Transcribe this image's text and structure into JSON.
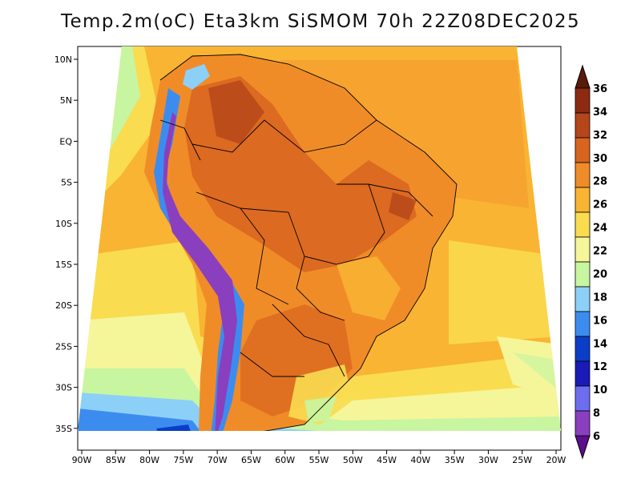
{
  "title": "Temp.2m(oC) Eta3km SiSMOM 70h 22Z08DEC2025",
  "map": {
    "lon_labels": [
      "90W",
      "85W",
      "80W",
      "75W",
      "70W",
      "65W",
      "60W",
      "55W",
      "50W",
      "45W",
      "40W",
      "35W",
      "30W",
      "25W",
      "20W"
    ],
    "lat_labels": [
      "10N",
      "5N",
      "EQ",
      "5S",
      "10S",
      "15S",
      "20S",
      "25S",
      "30S",
      "35S"
    ]
  },
  "colorbar": {
    "labels": [
      "6",
      "8",
      "10",
      "12",
      "14",
      "16",
      "18",
      "20",
      "22",
      "24",
      "26",
      "28",
      "30",
      "32",
      "34",
      "36"
    ],
    "colors": [
      "#5a0f8c",
      "#8a3fbf",
      "#6d6df0",
      "#1a1ab8",
      "#0a3ec8",
      "#3c8cf0",
      "#8cd0f8",
      "#c8f5a0",
      "#f5f59a",
      "#fadc50",
      "#f8b432",
      "#f08c28",
      "#d8641e",
      "#b4461a",
      "#8c2a12",
      "#5a1a0a"
    ]
  }
}
